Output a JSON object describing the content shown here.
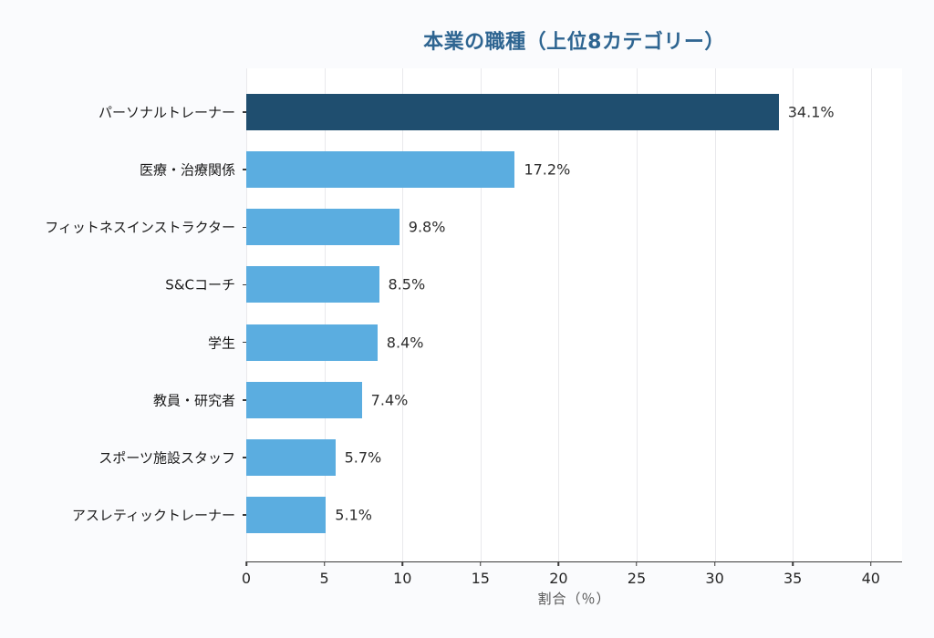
{
  "colors": {
    "figure_background": "#fafbfd",
    "plot_background": "#ffffff",
    "title": "#2e6591",
    "bar_highlight": "#1f4e6f",
    "bar_default": "#5bade0",
    "gridline": "#e9e9ec",
    "axis": "#3a3a3a",
    "tick_label": "#262626",
    "value_label": "#2e2e2e",
    "xlabel": "#555555"
  },
  "chart_data": {
    "type": "bar",
    "orientation": "horizontal",
    "title": "本業の職種（上位8カテゴリー）",
    "categories": [
      "パーソナルトレーナー",
      "医療・治療関係",
      "フィットネスインストラクター",
      "S&Cコーチ",
      "学生",
      "教員・研究者",
      "スポーツ施設スタッフ",
      "アスレティックトレーナー"
    ],
    "values": [
      34.1,
      17.2,
      9.8,
      8.5,
      8.4,
      7.4,
      5.7,
      5.1
    ],
    "value_labels": [
      "34.1%",
      "17.2%",
      "9.8%",
      "8.5%",
      "8.4%",
      "7.4%",
      "5.7%",
      "5.1%"
    ],
    "highlight_index": 0,
    "xlabel": "割合（％）",
    "ylabel": "",
    "xlim": [
      0,
      42
    ],
    "xticks": [
      0,
      5,
      10,
      15,
      20,
      25,
      30,
      35,
      40
    ],
    "grid": "vertical",
    "legend": "none"
  }
}
